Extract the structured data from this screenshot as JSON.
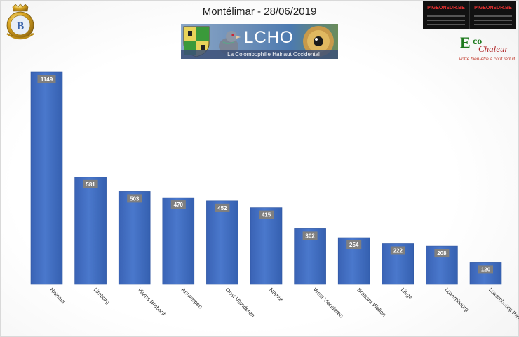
{
  "header": {
    "title": "Montélimar - 28/06/2019"
  },
  "banner": {
    "acronym": "LCHO",
    "subtitle": "La Colombophilie Hainaut Occidental"
  },
  "logos": {
    "left_letter": "B",
    "sponsor_word": "PIGEONSUR.BE",
    "eco_e": "E",
    "eco_co": "co",
    "eco_chaleur": "Chaleur",
    "eco_tagline": "Votre bien-être à coût réduit"
  },
  "colors": {
    "bar": "#4472c4",
    "bar_dark": "#2f55a0",
    "label_box": "#7f7f7f"
  },
  "chart_data": {
    "type": "bar",
    "title": "Montélimar - 28/06/2019",
    "categories": [
      "Hainaut",
      "Limburg",
      "Vlams Brabant",
      "Antwerpen",
      "Oost Vlanderen",
      "Namur",
      "West Vlanderen",
      "Brabant Wallon",
      "Liege",
      "Luxembourg",
      "Luxembourg Pays"
    ],
    "values": [
      1149,
      581,
      503,
      470,
      452,
      415,
      302,
      254,
      222,
      208,
      120
    ],
    "xlabel": "",
    "ylabel": "",
    "ylim": [
      0,
      1149
    ],
    "grid": false,
    "legend": "none",
    "data_labels": true
  }
}
